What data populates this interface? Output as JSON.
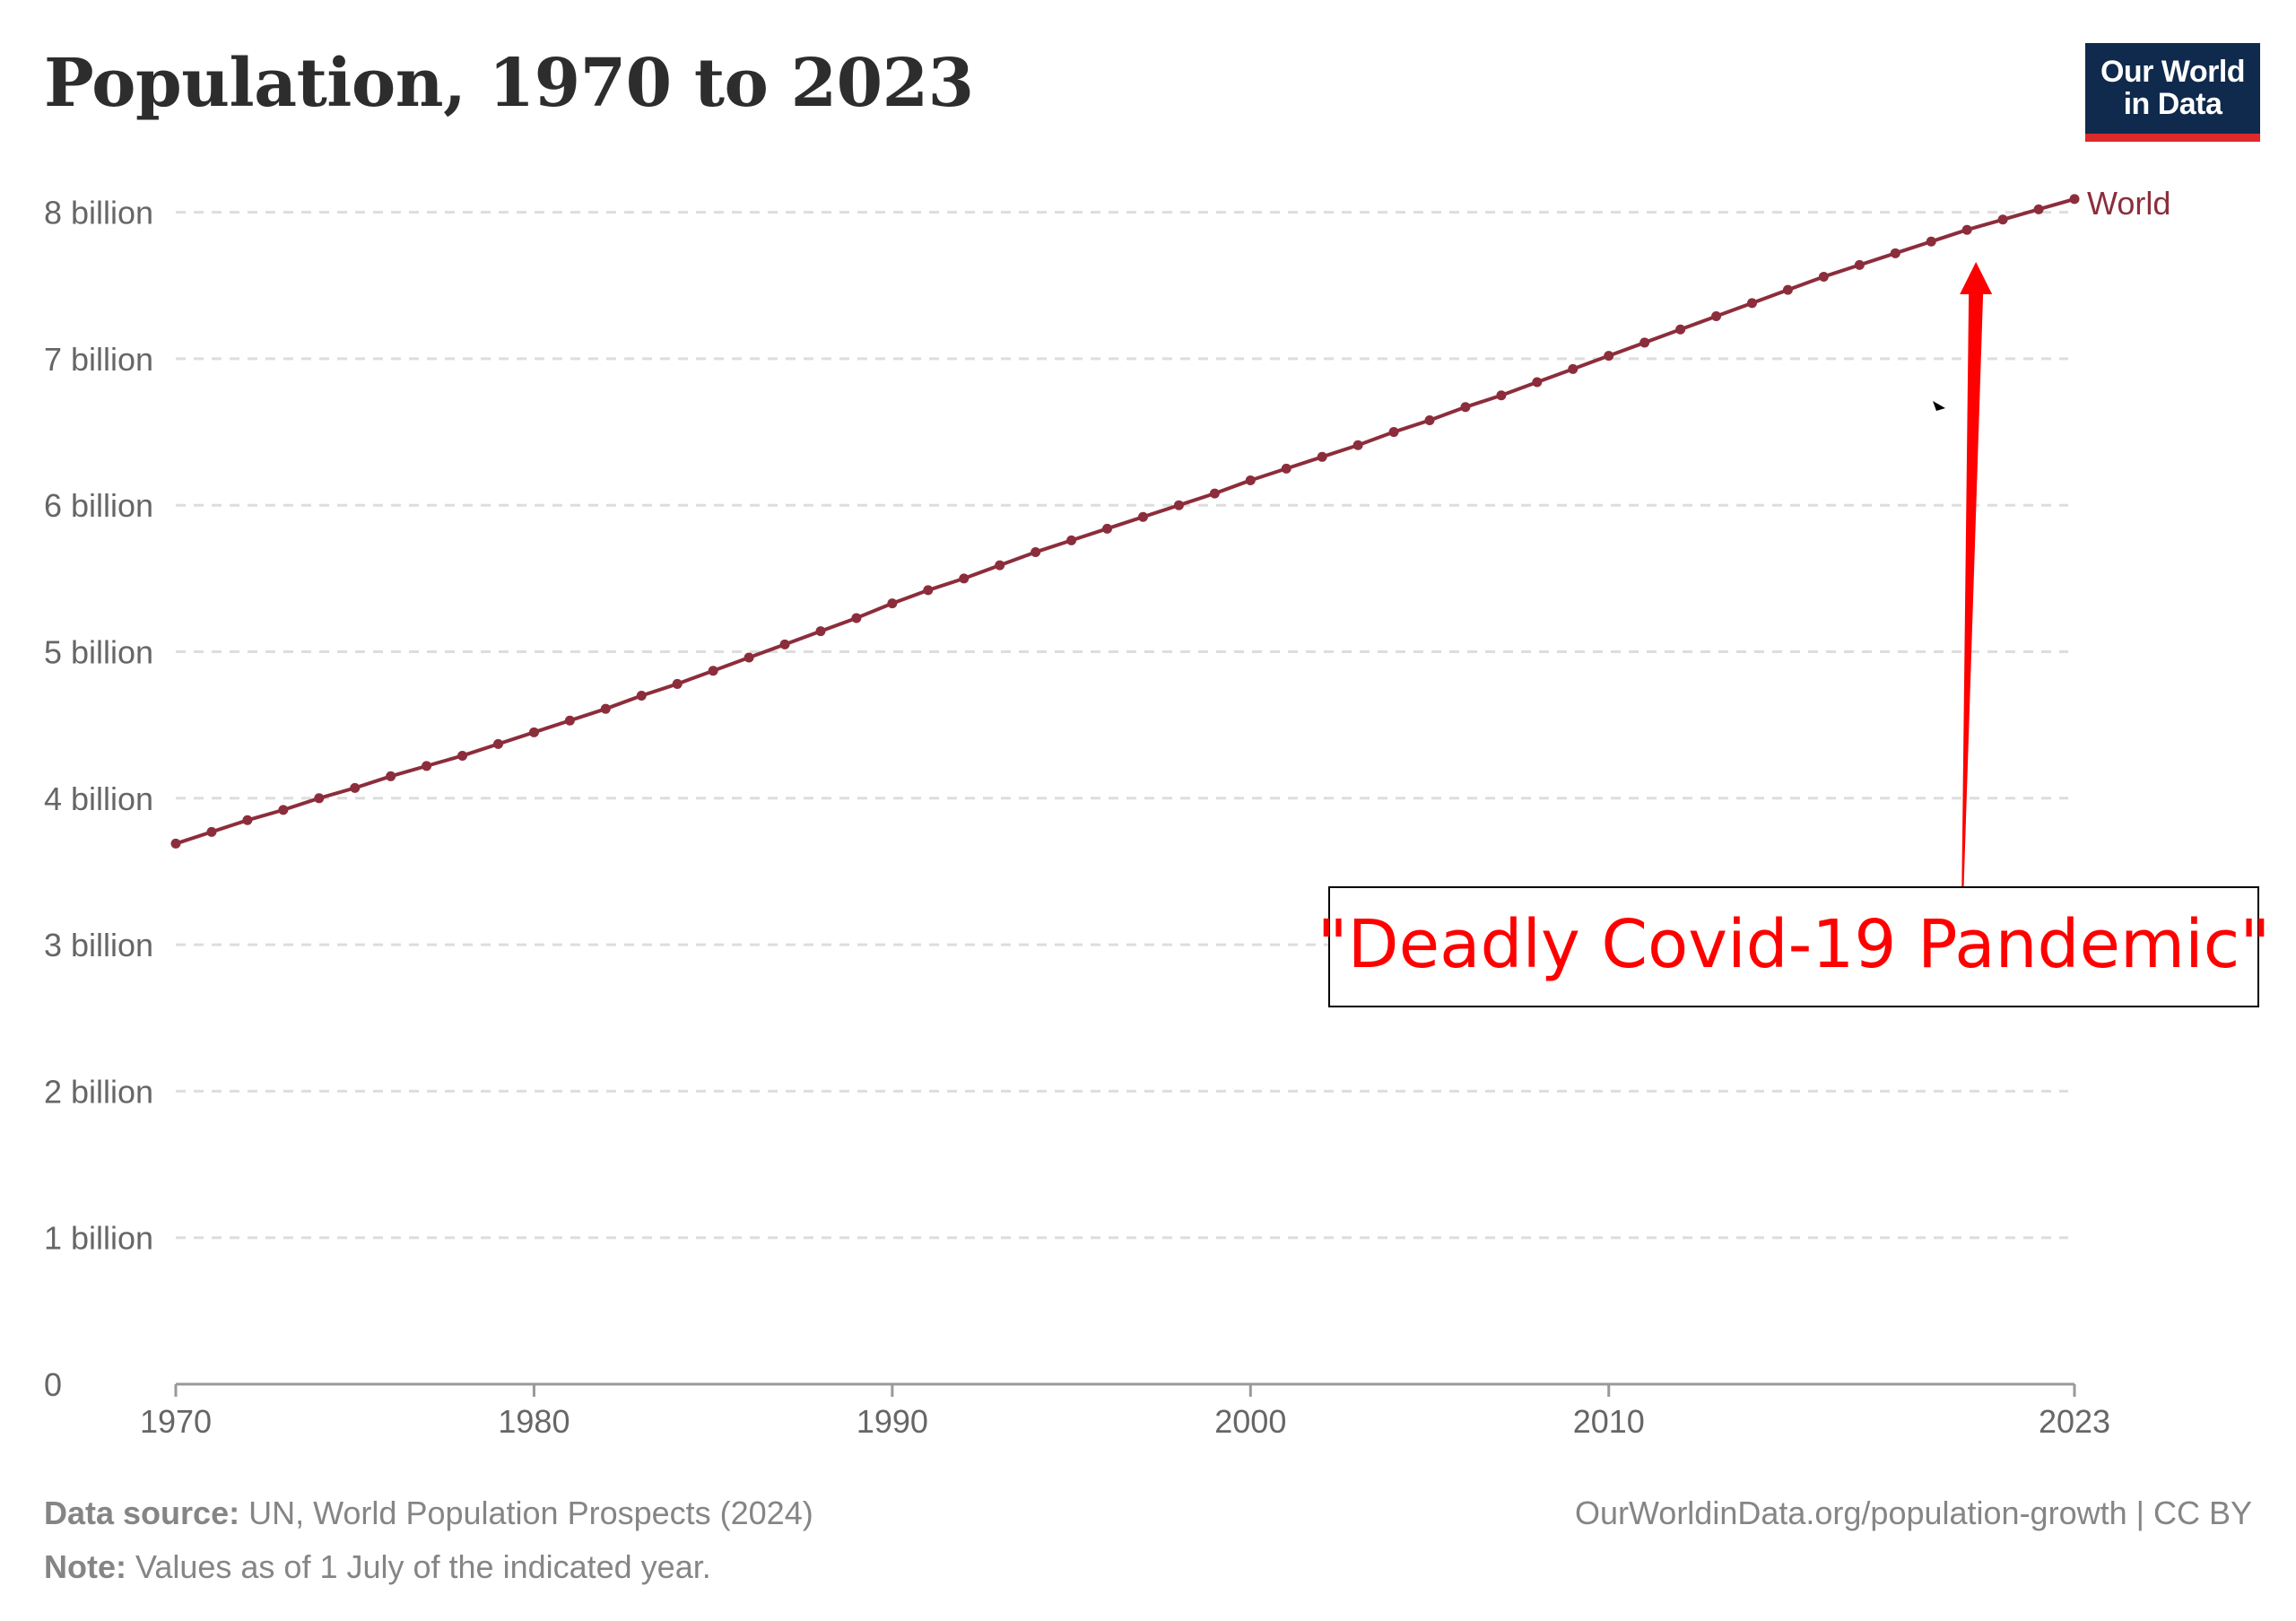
{
  "title": "Population, 1970 to 2023",
  "logo": {
    "line1": "Our World",
    "line2": "in Data"
  },
  "chart_data": {
    "type": "line",
    "title": "Population, 1970 to 2023",
    "series": [
      {
        "name": "World",
        "color": "#8c2d3b",
        "x": [
          1970,
          1971,
          1972,
          1973,
          1974,
          1975,
          1976,
          1977,
          1978,
          1979,
          1980,
          1981,
          1982,
          1983,
          1984,
          1985,
          1986,
          1987,
          1988,
          1989,
          1990,
          1991,
          1992,
          1993,
          1994,
          1995,
          1996,
          1997,
          1998,
          1999,
          2000,
          2001,
          2002,
          2003,
          2004,
          2005,
          2006,
          2007,
          2008,
          2009,
          2010,
          2011,
          2012,
          2013,
          2014,
          2015,
          2016,
          2017,
          2018,
          2019,
          2020,
          2021,
          2022,
          2023
        ],
        "values": [
          3.69,
          3.77,
          3.85,
          3.92,
          4.0,
          4.07,
          4.15,
          4.22,
          4.29,
          4.37,
          4.45,
          4.53,
          4.61,
          4.7,
          4.78,
          4.87,
          4.96,
          5.05,
          5.14,
          5.23,
          5.33,
          5.42,
          5.5,
          5.59,
          5.68,
          5.76,
          5.84,
          5.92,
          6.0,
          6.08,
          6.17,
          6.25,
          6.33,
          6.41,
          6.5,
          6.58,
          6.67,
          6.75,
          6.84,
          6.93,
          7.02,
          7.11,
          7.2,
          7.29,
          7.38,
          7.47,
          7.56,
          7.64,
          7.72,
          7.8,
          7.88,
          7.95,
          8.02,
          8.09
        ]
      }
    ],
    "y_unit": "billion",
    "ylim": [
      0,
      8.1
    ],
    "xlim": [
      1970,
      2023
    ],
    "y_ticks": [
      0,
      1,
      2,
      3,
      4,
      5,
      6,
      7,
      8
    ],
    "y_tick_labels": [
      "0",
      "1 billion",
      "2 billion",
      "3 billion",
      "4 billion",
      "5 billion",
      "6 billion",
      "7 billion",
      "8 billion"
    ],
    "x_ticks": [
      1970,
      1980,
      1990,
      2000,
      2010,
      2023
    ],
    "x_tick_labels": [
      "1970",
      "1980",
      "1990",
      "2000",
      "2010",
      "2023"
    ],
    "grid": "horizontal dashed",
    "annotation": {
      "text": "\"Deadly Covid-19 Pandemic\"",
      "arrow_target_x": 2020,
      "color": "#ff0000"
    }
  },
  "footer": {
    "source_label": "Data source:",
    "source_text": " UN, World Population Prospects (2024)",
    "note_label": "Note:",
    "note_text": " Values as of 1 July of the indicated year.",
    "url": "OurWorldinData.org/population-growth | CC BY"
  },
  "colors": {
    "line": "#8c2d3b",
    "annotation": "#ff0000",
    "logo_bg": "#0f2a4c",
    "logo_bar": "#dc2a2a"
  }
}
